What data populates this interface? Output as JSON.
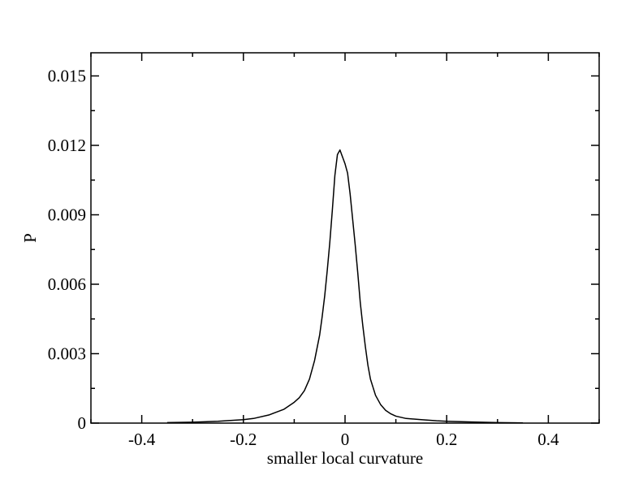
{
  "chart_data": {
    "type": "line",
    "title": "",
    "xlabel": "smaller local curvature",
    "ylabel": "P",
    "xlim": [
      -0.5,
      0.5
    ],
    "ylim": [
      0,
      0.016
    ],
    "xticks": [
      -0.4,
      -0.2,
      0,
      0.2,
      0.4
    ],
    "xtick_labels": [
      "-0.4",
      "-0.2",
      "0",
      "0.2",
      "0.4"
    ],
    "yticks": [
      0,
      0.003,
      0.006,
      0.009,
      0.012,
      0.015
    ],
    "ytick_labels": [
      "0",
      "0.003",
      "0.006",
      "0.009",
      "0.012",
      "0.015"
    ],
    "grid": false,
    "legend": "none",
    "line_color": "#000000",
    "series": [
      {
        "x": [
          -0.35,
          -0.3,
          -0.25,
          -0.2,
          -0.18,
          -0.15,
          -0.12,
          -0.1,
          -0.09,
          -0.08,
          -0.07,
          -0.06,
          -0.05,
          -0.045,
          -0.04,
          -0.035,
          -0.03,
          -0.025,
          -0.02,
          -0.015,
          -0.01,
          -0.005,
          0,
          0.005,
          0.01,
          0.015,
          0.02,
          0.025,
          0.03,
          0.035,
          0.04,
          0.045,
          0.05,
          0.06,
          0.07,
          0.08,
          0.09,
          0.1,
          0.12,
          0.15,
          0.18,
          0.2,
          0.25,
          0.3,
          0.35
        ],
        "y": [
          2e-05,
          4e-05,
          8e-05,
          0.00015,
          0.0002,
          0.00035,
          0.0006,
          0.0009,
          0.0011,
          0.0014,
          0.0019,
          0.0027,
          0.0038,
          0.0046,
          0.0055,
          0.0066,
          0.0078,
          0.0092,
          0.0107,
          0.0116,
          0.0118,
          0.0115,
          0.0112,
          0.0108,
          0.0099,
          0.0088,
          0.0077,
          0.0065,
          0.0052,
          0.0042,
          0.0033,
          0.0025,
          0.0019,
          0.0012,
          0.0008,
          0.00055,
          0.0004,
          0.0003,
          0.0002,
          0.00015,
          0.0001,
          8e-05,
          5e-05,
          2e-05,
          1e-05
        ]
      }
    ]
  }
}
